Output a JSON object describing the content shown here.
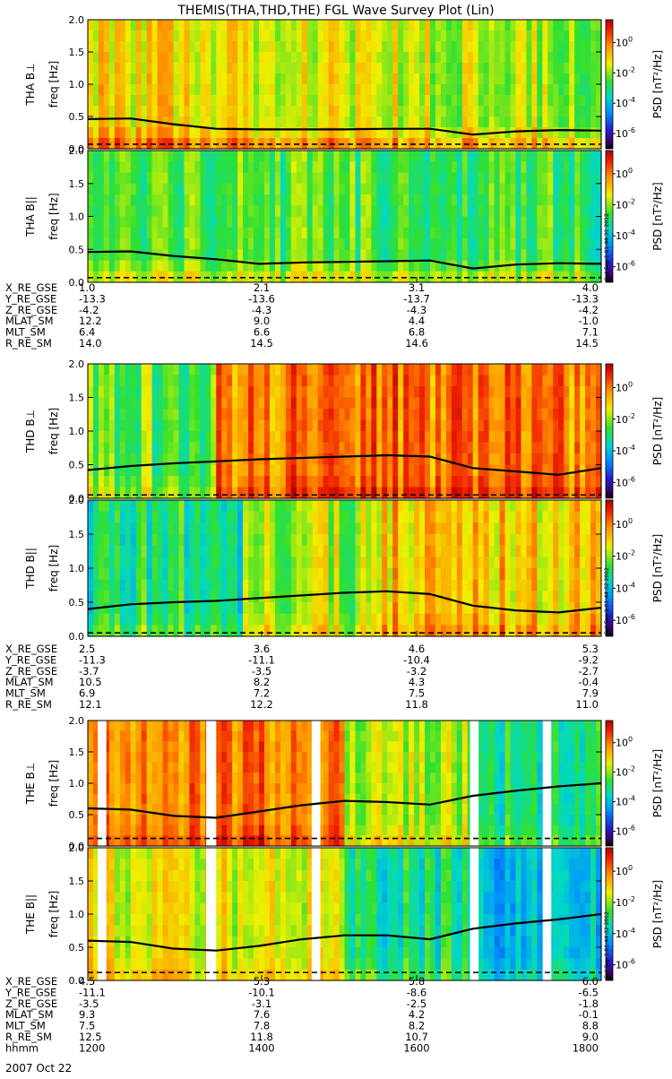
{
  "title": "THEMIS(THA,THD,THE) FGL Wave Survey Plot (Lin)",
  "stamps": [
    "Sat Sep  1 01:44:31 2012",
    "Sat Sep  1 01:44:32 2012",
    "Sat Sep  1 01:44:32 2012"
  ],
  "colorbar": {
    "label": "PSD [nT²/Hz]",
    "ticks": [
      {
        "base": "10",
        "exp": "0",
        "log": 0
      },
      {
        "base": "10",
        "exp": "-2",
        "log": -2
      },
      {
        "base": "10",
        "exp": "-4",
        "log": -4
      },
      {
        "base": "10",
        "exp": "-6",
        "log": -6
      }
    ],
    "range_log": [
      -7,
      1.5
    ]
  },
  "yticks": [
    "0.0",
    "0.5",
    "1.0",
    "1.5",
    "2.0"
  ],
  "ylabel_freq": "freq [Hz]",
  "probes": [
    {
      "id": "THA",
      "stamp": "Sat Sep  1 01:44:31 2012",
      "panels": [
        {
          "label": "THA B⊥",
          "profile": "tha_perp"
        },
        {
          "label": "THA B||",
          "profile": "tha_para"
        }
      ],
      "ephem_rows": [
        {
          "name": "X_RE_GSE",
          "values": [
            "1.0",
            "2.1",
            "3.1",
            "4.0"
          ]
        },
        {
          "name": "Y_RE_GSE",
          "values": [
            "-13.3",
            "-13.6",
            "-13.7",
            "-13.3"
          ]
        },
        {
          "name": "Z_RE_GSE",
          "values": [
            "-4.2",
            "-4.3",
            "-4.3",
            "-4.2"
          ]
        },
        {
          "name": "MLAT_SM",
          "values": [
            "12.2",
            "9.0",
            "4.4",
            "-1.0"
          ]
        },
        {
          "name": "MLT_SM",
          "values": [
            "6.4",
            "6.6",
            "6.8",
            "7.1"
          ]
        },
        {
          "name": "R_RE_SM",
          "values": [
            "14.0",
            "14.5",
            "14.6",
            "14.5"
          ]
        }
      ]
    },
    {
      "id": "THD",
      "stamp": "Sat Sep  1 01:44:32 2012",
      "panels": [
        {
          "label": "THD B⊥",
          "profile": "thd_perp"
        },
        {
          "label": "THD B||",
          "profile": "thd_para"
        }
      ],
      "ephem_rows": [
        {
          "name": "X_RE_GSE",
          "values": [
            "2.5",
            "3.6",
            "4.6",
            "5.3"
          ]
        },
        {
          "name": "Y_RE_GSE",
          "values": [
            "-11.3",
            "-11.1",
            "-10.4",
            "-9.2"
          ]
        },
        {
          "name": "Z_RE_GSE",
          "values": [
            "-3.7",
            "-3.5",
            "-3.2",
            "-2.7"
          ]
        },
        {
          "name": "MLAT_SM",
          "values": [
            "10.5",
            "8.2",
            "4.3",
            "-0.4"
          ]
        },
        {
          "name": "MLT_SM",
          "values": [
            "6.9",
            "7.2",
            "7.5",
            "7.9"
          ]
        },
        {
          "name": "R_RE_SM",
          "values": [
            "12.1",
            "12.2",
            "11.8",
            "11.0"
          ]
        }
      ]
    },
    {
      "id": "THE",
      "stamp": "Sat Sep  1 01:44:32 2012",
      "panels": [
        {
          "label": "THE B⊥",
          "profile": "the_perp"
        },
        {
          "label": "THE B||",
          "profile": "the_para"
        }
      ],
      "ephem_rows": [
        {
          "name": "X_RE_GSE",
          "values": [
            "4.5",
            "5.3",
            "5.8",
            "6.0"
          ]
        },
        {
          "name": "Y_RE_GSE",
          "values": [
            "-11.1",
            "-10.1",
            "-8.6",
            "-6.5"
          ]
        },
        {
          "name": "Z_RE_GSE",
          "values": [
            "-3.5",
            "-3.1",
            "-2.5",
            "-1.8"
          ]
        },
        {
          "name": "MLAT_SM",
          "values": [
            "9.3",
            "7.6",
            "4.2",
            "-0.1"
          ]
        },
        {
          "name": "MLT_SM",
          "values": [
            "7.5",
            "7.8",
            "8.2",
            "8.8"
          ]
        },
        {
          "name": "R_RE_SM",
          "values": [
            "12.5",
            "11.8",
            "10.7",
            "9.0"
          ]
        },
        {
          "name": "hhmm",
          "values": [
            "1200",
            "1400",
            "1600",
            "1800"
          ]
        }
      ]
    }
  ],
  "date_label": "2007 Oct 22",
  "chart_data": {
    "type": "heatmap",
    "title": "THEMIS(THA,THD,THE) FGL Wave Survey Plot (Lin)",
    "x_unit": "hhmm",
    "x_ticks": [
      "1200",
      "1400",
      "1600",
      "1800"
    ],
    "xlim": [
      "1200",
      "1800"
    ],
    "ylim": [
      0,
      2.0
    ],
    "y_ticks": [
      0.0,
      0.5,
      1.0,
      1.5,
      2.0
    ],
    "colorbar_log_range": [
      -7,
      1.5
    ],
    "line_knots_x": [
      "1200",
      "1230",
      "1300",
      "1330",
      "1400",
      "1430",
      "1500",
      "1530",
      "1600",
      "1630",
      "1700",
      "1730",
      "1800"
    ],
    "panels": [
      {
        "name": "THA B⊥",
        "solid_line_hz": [
          0.46,
          0.47,
          0.38,
          0.31,
          0.3,
          0.3,
          0.3,
          0.31,
          0.31,
          0.22,
          0.27,
          0.29,
          0.28
        ],
        "dashed_line_hz": 0.07,
        "gaps": []
      },
      {
        "name": "THA B||",
        "solid_line_hz": [
          0.46,
          0.47,
          0.4,
          0.35,
          0.28,
          0.3,
          0.31,
          0.32,
          0.33,
          0.21,
          0.27,
          0.29,
          0.28
        ],
        "dashed_line_hz": 0.07,
        "gaps": []
      },
      {
        "name": "THD B⊥",
        "solid_line_hz": [
          0.42,
          0.48,
          0.52,
          0.55,
          0.58,
          0.6,
          0.62,
          0.64,
          0.62,
          0.45,
          0.4,
          0.35,
          0.45
        ],
        "dashed_line_hz": 0.05,
        "gaps": []
      },
      {
        "name": "THD B||",
        "solid_line_hz": [
          0.4,
          0.47,
          0.5,
          0.52,
          0.56,
          0.6,
          0.64,
          0.66,
          0.62,
          0.45,
          0.38,
          0.35,
          0.42
        ],
        "dashed_line_hz": 0.05,
        "gaps": []
      },
      {
        "name": "THE B⊥",
        "solid_line_hz": [
          0.6,
          0.58,
          0.48,
          0.45,
          0.55,
          0.65,
          0.72,
          0.7,
          0.66,
          0.8,
          0.88,
          0.95,
          1.0
        ],
        "dashed_line_hz": 0.12,
        "gaps": [
          [
            "1207",
            "1213"
          ],
          [
            "1323",
            "1330"
          ],
          [
            "1437",
            "1443"
          ],
          [
            "1628",
            "1634"
          ],
          [
            "1719",
            "1725"
          ]
        ]
      },
      {
        "name": "THE B||",
        "solid_line_hz": [
          0.6,
          0.58,
          0.48,
          0.45,
          0.52,
          0.62,
          0.68,
          0.68,
          0.62,
          0.78,
          0.86,
          0.92,
          1.0
        ],
        "dashed_line_hz": 0.12,
        "gaps": [
          [
            "1207",
            "1213"
          ],
          [
            "1323",
            "1330"
          ],
          [
            "1437",
            "1443"
          ],
          [
            "1628",
            "1634"
          ],
          [
            "1719",
            "1725"
          ]
        ]
      }
    ]
  }
}
